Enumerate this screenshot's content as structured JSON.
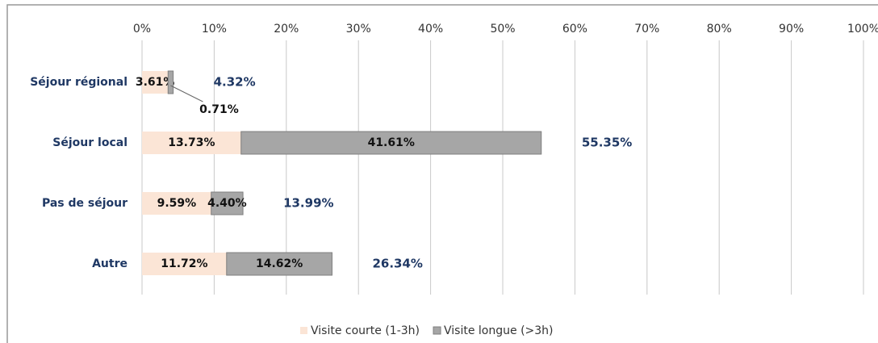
{
  "chart_data": {
    "type": "stacked_bar_horizontal",
    "categories": [
      "Séjour régional",
      "Séjour local",
      "Pas de séjour",
      "Autre"
    ],
    "series": [
      {
        "name": "Visite courte (1-3h)",
        "color": "#fbe5d6",
        "values": [
          3.61,
          13.73,
          9.59,
          11.72
        ],
        "value_labels": [
          "3.61%",
          "13.73%",
          "9.59%",
          "11.72%"
        ]
      },
      {
        "name": "Visite longue (>3h)",
        "color": "#a6a6a6",
        "values": [
          0.71,
          41.61,
          4.4,
          14.62
        ],
        "value_labels": [
          "0.71%",
          "41.61%",
          "4.40%",
          "14.62%"
        ]
      }
    ],
    "totals": {
      "values": [
        4.32,
        55.35,
        13.99,
        26.34
      ],
      "value_labels": [
        "4.32%",
        "55.35%",
        "13.99%",
        "26.34%"
      ]
    },
    "xlim": [
      0,
      100
    ],
    "xticks": [
      {
        "value": 0,
        "label": "0%"
      },
      {
        "value": 10,
        "label": "10%"
      },
      {
        "value": 20,
        "label": "20%"
      },
      {
        "value": 30,
        "label": "30%"
      },
      {
        "value": 40,
        "label": "40%"
      },
      {
        "value": 50,
        "label": "50%"
      },
      {
        "value": 60,
        "label": "60%"
      },
      {
        "value": 70,
        "label": "70%"
      },
      {
        "value": 80,
        "label": "80%"
      },
      {
        "value": 90,
        "label": "90%"
      },
      {
        "value": 100,
        "label": "100%"
      }
    ],
    "grid": true,
    "legend": "bottom"
  }
}
